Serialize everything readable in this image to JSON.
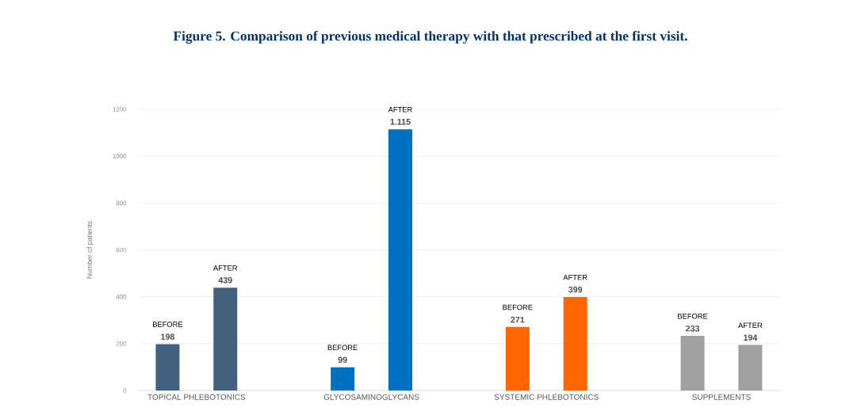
{
  "chart_data": {
    "type": "bar",
    "title": "Figure 5. Comparison of previous medical therapy with that prescribed at the first visit.",
    "ylabel": "Number of patients",
    "categories": [
      "TOPICAL PHLEBOTONICS",
      "GLYCOSAMINOGLYCANS",
      "SYSTEMIC PHLEBOTONICS",
      "SUPPLEMENTS"
    ],
    "series": [
      {
        "name": "BEFORE",
        "colors": [
          "#44607f",
          "#0070c0",
          "#ff6600",
          "#a0a0a0"
        ],
        "values": [
          198,
          99,
          271,
          233
        ],
        "value_labels": [
          "198",
          "99",
          "271",
          "233"
        ]
      },
      {
        "name": "AFTER",
        "colors": [
          "#44607f",
          "#0070c0",
          "#ff6600",
          "#a0a0a0"
        ],
        "values": [
          439,
          1115,
          399,
          194
        ],
        "value_labels": [
          "439",
          "1.115",
          "399",
          "194"
        ]
      }
    ],
    "ylim": [
      0,
      1200
    ],
    "yticks": [
      0,
      200,
      400,
      600,
      800,
      1000,
      1200
    ],
    "grid": "y"
  }
}
